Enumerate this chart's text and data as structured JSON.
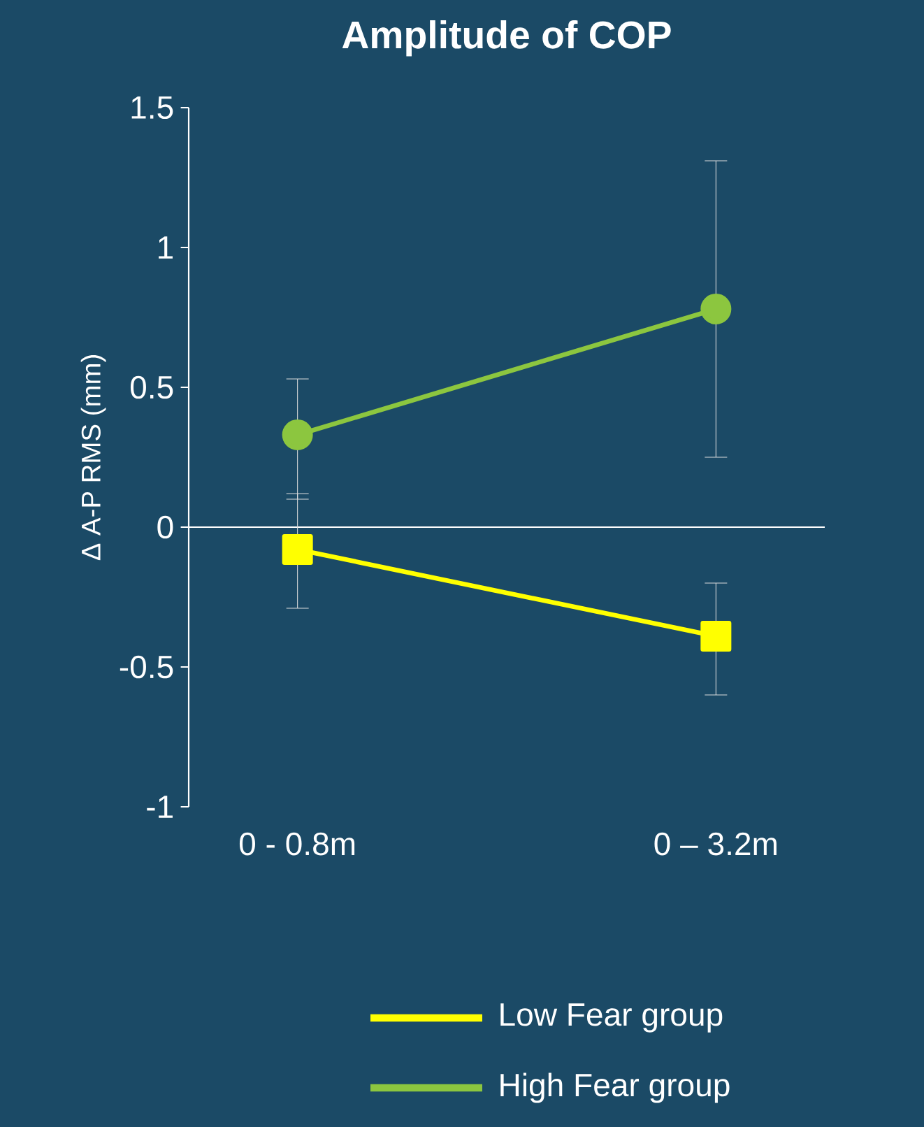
{
  "chart_data": {
    "type": "line",
    "title": "Amplitude of COP",
    "ylabel": "Δ A-P RMS (mm)",
    "categories": [
      "0 -  0.8m",
      "0 – 3.2m"
    ],
    "series": [
      {
        "name": "Low Fear group",
        "color": "#ffff00",
        "marker": "square",
        "values": [
          -0.08,
          -0.39
        ],
        "errors": [
          [
            -0.29,
            0.12
          ],
          [
            -0.6,
            -0.2
          ]
        ]
      },
      {
        "name": "High Fear group",
        "color": "#8cc63f",
        "marker": "circle",
        "values": [
          0.33,
          0.78
        ],
        "errors": [
          [
            0.1,
            0.53
          ],
          [
            0.25,
            1.31
          ]
        ]
      }
    ],
    "ylim": [
      -1,
      1.5
    ],
    "yticks": [
      -1,
      -0.5,
      0,
      0.5,
      1,
      1.5
    ],
    "legend": "bottom"
  }
}
